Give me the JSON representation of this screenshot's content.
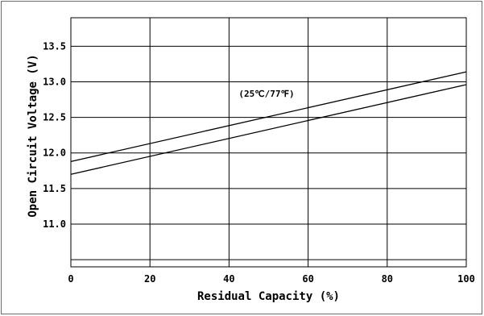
{
  "chart_data": {
    "type": "line",
    "xlabel": "Residual Capacity (%)",
    "ylabel": "Open Circuit Voltage (V)",
    "annotation": "(25℃/77℉)",
    "xlim": [
      0,
      100
    ],
    "ylim": [
      10.4,
      13.9
    ],
    "x_ticks": [
      "0",
      "20",
      "40",
      "60",
      "80",
      "100"
    ],
    "x_tick_values": [
      0,
      20,
      40,
      60,
      80,
      100
    ],
    "y_ticks": [
      "11.0",
      "11.5",
      "12.0",
      "12.5",
      "13.0",
      "13.5"
    ],
    "y_tick_values": [
      11.0,
      11.5,
      12.0,
      12.5,
      13.0,
      13.5
    ],
    "y_gridlines": [
      10.5,
      11.0,
      11.5,
      12.0,
      12.5,
      13.0,
      13.5
    ],
    "grid": true,
    "series": [
      {
        "x": [
          0,
          100
        ],
        "y": [
          11.88,
          13.14
        ]
      },
      {
        "x": [
          0,
          100
        ],
        "y": [
          11.7,
          12.96
        ]
      }
    ],
    "colors": {
      "line": "#000000",
      "grid": "#000000",
      "frame": "#6b6b6b"
    }
  }
}
